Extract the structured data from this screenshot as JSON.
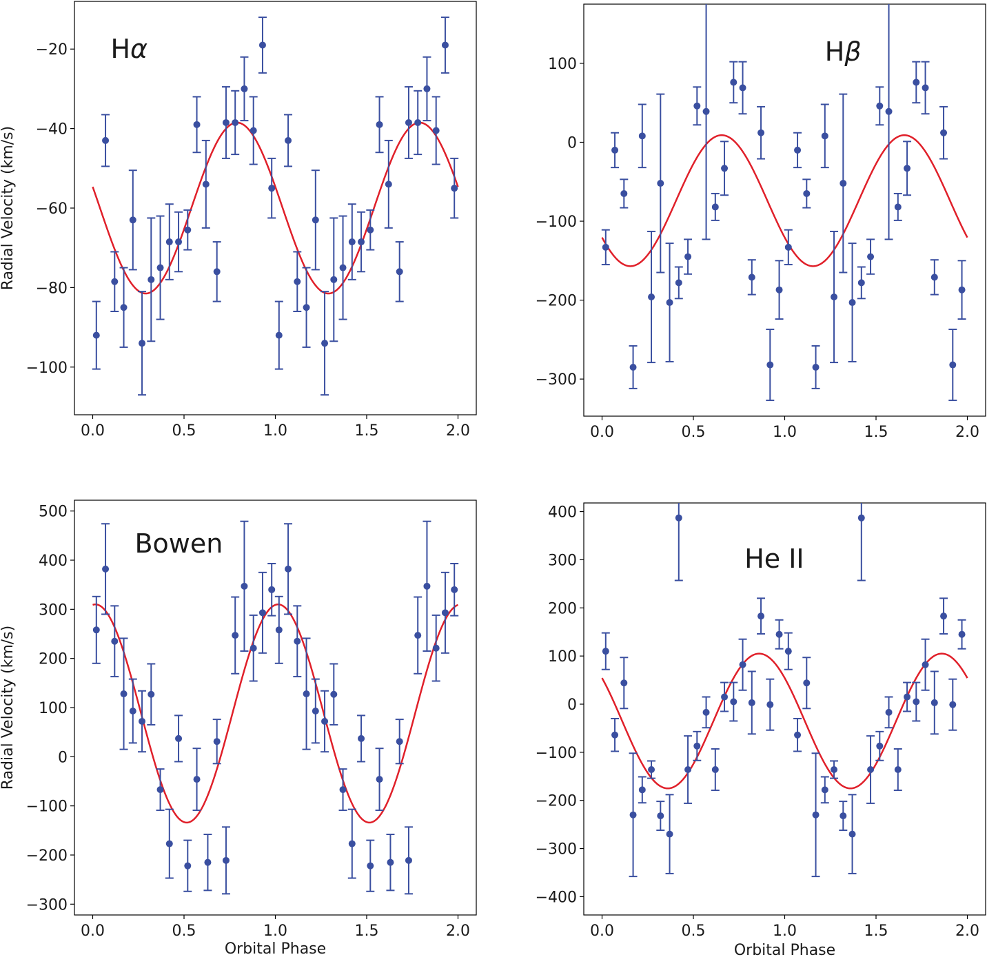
{
  "colors": {
    "points": "#3a4fa0",
    "model": "#e0202a",
    "axes": "#000000"
  },
  "chart_data": [
    {
      "type": "scatter",
      "title": "Hα",
      "title_base": "H",
      "title_greek": "α",
      "xlabel": "",
      "ylabel": "Radial Velocity (km/s)",
      "xlim": [
        -0.1,
        2.1
      ],
      "ylim": [
        -112,
        -8
      ],
      "xticks": [
        0.0,
        0.5,
        1.0,
        1.5,
        2.0
      ],
      "xtick_labels": [
        "0.0",
        "0.5",
        "1.0",
        "1.5",
        "2.0"
      ],
      "yticks": [
        -100,
        -80,
        -60,
        -40,
        -20
      ],
      "ytick_labels": [
        "−100",
        "−80",
        "−60",
        "−40",
        "−20"
      ],
      "model": {
        "mean": -60,
        "amplitude": 21.5,
        "phase_of_max": 0.79
      },
      "points": [
        {
          "x": 0.02,
          "y": -92,
          "err": 8.5
        },
        {
          "x": 0.07,
          "y": -43,
          "err": 6.5
        },
        {
          "x": 0.12,
          "y": -78.5,
          "err": 7.5
        },
        {
          "x": 0.17,
          "y": -85,
          "err": 10
        },
        {
          "x": 0.22,
          "y": -63,
          "err": 12.5
        },
        {
          "x": 0.27,
          "y": -94,
          "err": 13
        },
        {
          "x": 0.32,
          "y": -78,
          "err": 15.5
        },
        {
          "x": 0.37,
          "y": -75,
          "err": 13
        },
        {
          "x": 0.42,
          "y": -68.5,
          "err": 9.5
        },
        {
          "x": 0.47,
          "y": -68.5,
          "err": 7.5
        },
        {
          "x": 0.52,
          "y": -65.5,
          "err": 5
        },
        {
          "x": 0.57,
          "y": -39,
          "err": 7
        },
        {
          "x": 0.62,
          "y": -54,
          "err": 11
        },
        {
          "x": 0.68,
          "y": -76,
          "err": 7.5
        },
        {
          "x": 0.73,
          "y": -38.5,
          "err": 9
        },
        {
          "x": 0.78,
          "y": -38.5,
          "err": 8
        },
        {
          "x": 0.83,
          "y": -30,
          "err": 8
        },
        {
          "x": 0.88,
          "y": -40.5,
          "err": 8.5
        },
        {
          "x": 0.93,
          "y": -19,
          "err": 7
        },
        {
          "x": 0.98,
          "y": -55,
          "err": 7.5
        },
        {
          "x": 1.02,
          "y": -92,
          "err": 8.5
        },
        {
          "x": 1.07,
          "y": -43,
          "err": 6.5
        },
        {
          "x": 1.12,
          "y": -78.5,
          "err": 7.5
        },
        {
          "x": 1.17,
          "y": -85,
          "err": 10
        },
        {
          "x": 1.22,
          "y": -63,
          "err": 12.5
        },
        {
          "x": 1.27,
          "y": -94,
          "err": 13
        },
        {
          "x": 1.32,
          "y": -78,
          "err": 15.5
        },
        {
          "x": 1.37,
          "y": -75,
          "err": 13
        },
        {
          "x": 1.42,
          "y": -68.5,
          "err": 9.5
        },
        {
          "x": 1.47,
          "y": -68.5,
          "err": 7.5
        },
        {
          "x": 1.52,
          "y": -65.5,
          "err": 5
        },
        {
          "x": 1.57,
          "y": -39,
          "err": 7
        },
        {
          "x": 1.62,
          "y": -54,
          "err": 11
        },
        {
          "x": 1.68,
          "y": -76,
          "err": 7.5
        },
        {
          "x": 1.73,
          "y": -38.5,
          "err": 9
        },
        {
          "x": 1.78,
          "y": -38.5,
          "err": 8
        },
        {
          "x": 1.83,
          "y": -30,
          "err": 8
        },
        {
          "x": 1.88,
          "y": -40.5,
          "err": 8.5
        },
        {
          "x": 1.93,
          "y": -19,
          "err": 7
        },
        {
          "x": 1.98,
          "y": -55,
          "err": 7.5
        }
      ]
    },
    {
      "type": "scatter",
      "title": "Hβ",
      "title_base": "H",
      "title_greek": "β",
      "xlabel": "",
      "ylabel": "",
      "xlim": [
        -0.1,
        2.1
      ],
      "ylim": [
        -347,
        175
      ],
      "xticks": [
        0.0,
        0.5,
        1.0,
        1.5,
        2.0
      ],
      "xtick_labels": [
        "0.0",
        "0.5",
        "1.0",
        "1.5",
        "2.0"
      ],
      "yticks": [
        -300,
        -200,
        -100,
        0,
        100
      ],
      "ytick_labels": [
        "−300",
        "−200",
        "−100",
        "0",
        "100"
      ],
      "model": {
        "mean": -74,
        "amplitude": 83,
        "phase_of_max": 0.655
      },
      "points": [
        {
          "x": 0.02,
          "y": -133,
          "err": 22
        },
        {
          "x": 0.07,
          "y": -10,
          "err": 22
        },
        {
          "x": 0.12,
          "y": -65,
          "err": 18
        },
        {
          "x": 0.17,
          "y": -285,
          "err": 27
        },
        {
          "x": 0.22,
          "y": 8,
          "err": 40
        },
        {
          "x": 0.27,
          "y": -196,
          "err": 83
        },
        {
          "x": 0.32,
          "y": -52,
          "err": 113
        },
        {
          "x": 0.37,
          "y": -203,
          "err": 75
        },
        {
          "x": 0.42,
          "y": -178,
          "err": 20
        },
        {
          "x": 0.47,
          "y": -145,
          "err": 22
        },
        {
          "x": 0.52,
          "y": 46,
          "err": 24
        },
        {
          "x": 0.57,
          "y": 39,
          "err": 162
        },
        {
          "x": 0.62,
          "y": -82,
          "err": 17
        },
        {
          "x": 0.67,
          "y": -33,
          "err": 34
        },
        {
          "x": 0.72,
          "y": 76,
          "err": 26
        },
        {
          "x": 0.77,
          "y": 69,
          "err": 33
        },
        {
          "x": 0.82,
          "y": -171,
          "err": 22
        },
        {
          "x": 0.87,
          "y": 12,
          "err": 33
        },
        {
          "x": 0.92,
          "y": -282,
          "err": 45
        },
        {
          "x": 0.97,
          "y": -187,
          "err": 37
        },
        {
          "x": 1.02,
          "y": -133,
          "err": 22
        },
        {
          "x": 1.07,
          "y": -10,
          "err": 22
        },
        {
          "x": 1.12,
          "y": -65,
          "err": 18
        },
        {
          "x": 1.17,
          "y": -285,
          "err": 27
        },
        {
          "x": 1.22,
          "y": 8,
          "err": 40
        },
        {
          "x": 1.27,
          "y": -196,
          "err": 83
        },
        {
          "x": 1.32,
          "y": -52,
          "err": 113
        },
        {
          "x": 1.37,
          "y": -203,
          "err": 75
        },
        {
          "x": 1.42,
          "y": -178,
          "err": 20
        },
        {
          "x": 1.47,
          "y": -145,
          "err": 22
        },
        {
          "x": 1.52,
          "y": 46,
          "err": 24
        },
        {
          "x": 1.57,
          "y": 39,
          "err": 162
        },
        {
          "x": 1.62,
          "y": -82,
          "err": 17
        },
        {
          "x": 1.67,
          "y": -33,
          "err": 34
        },
        {
          "x": 1.72,
          "y": 76,
          "err": 26
        },
        {
          "x": 1.77,
          "y": 69,
          "err": 33
        },
        {
          "x": 1.82,
          "y": -171,
          "err": 22
        },
        {
          "x": 1.87,
          "y": 12,
          "err": 33
        },
        {
          "x": 1.92,
          "y": -282,
          "err": 45
        },
        {
          "x": 1.97,
          "y": -187,
          "err": 37
        }
      ]
    },
    {
      "type": "scatter",
      "title": "Bowen",
      "title_base": "Bowen",
      "title_greek": "",
      "xlabel": "Orbital Phase",
      "ylabel": "Radial Velocity (km/s)",
      "xlim": [
        -0.1,
        2.1
      ],
      "ylim": [
        -322,
        522
      ],
      "xticks": [
        0.0,
        0.5,
        1.0,
        1.5,
        2.0
      ],
      "xtick_labels": [
        "0.0",
        "0.5",
        "1.0",
        "1.5",
        "2.0"
      ],
      "yticks": [
        -300,
        -200,
        -100,
        0,
        100,
        200,
        300,
        400,
        500
      ],
      "ytick_labels": [
        "−300",
        "−200",
        "−100",
        "0",
        "100",
        "200",
        "300",
        "400",
        "500"
      ],
      "model": {
        "mean": 88,
        "amplitude": 222,
        "phase_of_max": 0.015
      },
      "points": [
        {
          "x": 0.02,
          "y": 258,
          "err": 68
        },
        {
          "x": 0.07,
          "y": 382,
          "err": 92
        },
        {
          "x": 0.12,
          "y": 235,
          "err": 72
        },
        {
          "x": 0.17,
          "y": 128,
          "err": 113
        },
        {
          "x": 0.22,
          "y": 93,
          "err": 65
        },
        {
          "x": 0.27,
          "y": 72,
          "err": 62
        },
        {
          "x": 0.32,
          "y": 127,
          "err": 62
        },
        {
          "x": 0.37,
          "y": -67,
          "err": 42
        },
        {
          "x": 0.42,
          "y": -177,
          "err": 70
        },
        {
          "x": 0.47,
          "y": 37,
          "err": 47
        },
        {
          "x": 0.52,
          "y": -222,
          "err": 52
        },
        {
          "x": 0.57,
          "y": -46,
          "err": 63
        },
        {
          "x": 0.63,
          "y": -215,
          "err": 57
        },
        {
          "x": 0.68,
          "y": 31,
          "err": 45
        },
        {
          "x": 0.73,
          "y": -211,
          "err": 68
        },
        {
          "x": 0.78,
          "y": 247,
          "err": 78
        },
        {
          "x": 0.83,
          "y": 347,
          "err": 132
        },
        {
          "x": 0.88,
          "y": 221,
          "err": 67
        },
        {
          "x": 0.93,
          "y": 293,
          "err": 82
        },
        {
          "x": 0.98,
          "y": 340,
          "err": 53
        },
        {
          "x": 1.02,
          "y": 258,
          "err": 68
        },
        {
          "x": 1.07,
          "y": 382,
          "err": 92
        },
        {
          "x": 1.12,
          "y": 235,
          "err": 72
        },
        {
          "x": 1.17,
          "y": 128,
          "err": 113
        },
        {
          "x": 1.22,
          "y": 93,
          "err": 65
        },
        {
          "x": 1.27,
          "y": 72,
          "err": 62
        },
        {
          "x": 1.32,
          "y": 127,
          "err": 62
        },
        {
          "x": 1.37,
          "y": -67,
          "err": 42
        },
        {
          "x": 1.42,
          "y": -177,
          "err": 70
        },
        {
          "x": 1.47,
          "y": 37,
          "err": 47
        },
        {
          "x": 1.52,
          "y": -222,
          "err": 52
        },
        {
          "x": 1.57,
          "y": -46,
          "err": 63
        },
        {
          "x": 1.63,
          "y": -215,
          "err": 57
        },
        {
          "x": 1.68,
          "y": 31,
          "err": 45
        },
        {
          "x": 1.73,
          "y": -211,
          "err": 68
        },
        {
          "x": 1.78,
          "y": 247,
          "err": 78
        },
        {
          "x": 1.83,
          "y": 347,
          "err": 132
        },
        {
          "x": 1.88,
          "y": 221,
          "err": 67
        },
        {
          "x": 1.93,
          "y": 293,
          "err": 82
        },
        {
          "x": 1.98,
          "y": 340,
          "err": 53
        }
      ]
    },
    {
      "type": "scatter",
      "title": "He II",
      "title_base": "He II",
      "title_greek": "",
      "xlabel": "Orbital Phase",
      "ylabel": "",
      "xlim": [
        -0.1,
        2.1
      ],
      "ylim": [
        -438,
        418
      ],
      "xticks": [
        0.0,
        0.5,
        1.0,
        1.5,
        2.0
      ],
      "xtick_labels": [
        "0.0",
        "0.5",
        "1.0",
        "1.5",
        "2.0"
      ],
      "yticks": [
        -400,
        -300,
        -200,
        -100,
        0,
        100,
        200,
        300,
        400
      ],
      "ytick_labels": [
        "−400",
        "−300",
        "−200",
        "−100",
        "0",
        "100",
        "200",
        "300",
        "400"
      ],
      "model": {
        "mean": -35,
        "amplitude": 140,
        "phase_of_max": 0.86
      },
      "points": [
        {
          "x": 0.02,
          "y": 110,
          "err": 38
        },
        {
          "x": 0.07,
          "y": -64,
          "err": 34
        },
        {
          "x": 0.12,
          "y": 44,
          "err": 53
        },
        {
          "x": 0.17,
          "y": -230,
          "err": 128
        },
        {
          "x": 0.22,
          "y": -178,
          "err": 27
        },
        {
          "x": 0.27,
          "y": -136,
          "err": 18
        },
        {
          "x": 0.32,
          "y": -232,
          "err": 30
        },
        {
          "x": 0.37,
          "y": -270,
          "err": 82
        },
        {
          "x": 0.42,
          "y": 387,
          "err": 130
        },
        {
          "x": 0.47,
          "y": -136,
          "err": 70
        },
        {
          "x": 0.52,
          "y": -87,
          "err": 30
        },
        {
          "x": 0.57,
          "y": -17,
          "err": 32
        },
        {
          "x": 0.62,
          "y": -136,
          "err": 43
        },
        {
          "x": 0.67,
          "y": 15,
          "err": 30
        },
        {
          "x": 0.72,
          "y": 5,
          "err": 40
        },
        {
          "x": 0.77,
          "y": 82,
          "err": 53
        },
        {
          "x": 0.82,
          "y": 3,
          "err": 65
        },
        {
          "x": 0.87,
          "y": 183,
          "err": 37
        },
        {
          "x": 0.92,
          "y": -1,
          "err": 53
        },
        {
          "x": 0.97,
          "y": 145,
          "err": 30
        },
        {
          "x": 1.02,
          "y": 110,
          "err": 38
        },
        {
          "x": 1.07,
          "y": -64,
          "err": 34
        },
        {
          "x": 1.12,
          "y": 44,
          "err": 53
        },
        {
          "x": 1.17,
          "y": -230,
          "err": 128
        },
        {
          "x": 1.22,
          "y": -178,
          "err": 27
        },
        {
          "x": 1.27,
          "y": -136,
          "err": 18
        },
        {
          "x": 1.32,
          "y": -232,
          "err": 30
        },
        {
          "x": 1.37,
          "y": -270,
          "err": 82
        },
        {
          "x": 1.42,
          "y": 387,
          "err": 130
        },
        {
          "x": 1.47,
          "y": -136,
          "err": 70
        },
        {
          "x": 1.52,
          "y": -87,
          "err": 30
        },
        {
          "x": 1.57,
          "y": -17,
          "err": 32
        },
        {
          "x": 1.62,
          "y": -136,
          "err": 43
        },
        {
          "x": 1.67,
          "y": 15,
          "err": 30
        },
        {
          "x": 1.72,
          "y": 5,
          "err": 40
        },
        {
          "x": 1.77,
          "y": 82,
          "err": 53
        },
        {
          "x": 1.82,
          "y": 3,
          "err": 65
        },
        {
          "x": 1.87,
          "y": 183,
          "err": 37
        },
        {
          "x": 1.92,
          "y": -1,
          "err": 53
        },
        {
          "x": 1.97,
          "y": 145,
          "err": 30
        }
      ]
    }
  ]
}
